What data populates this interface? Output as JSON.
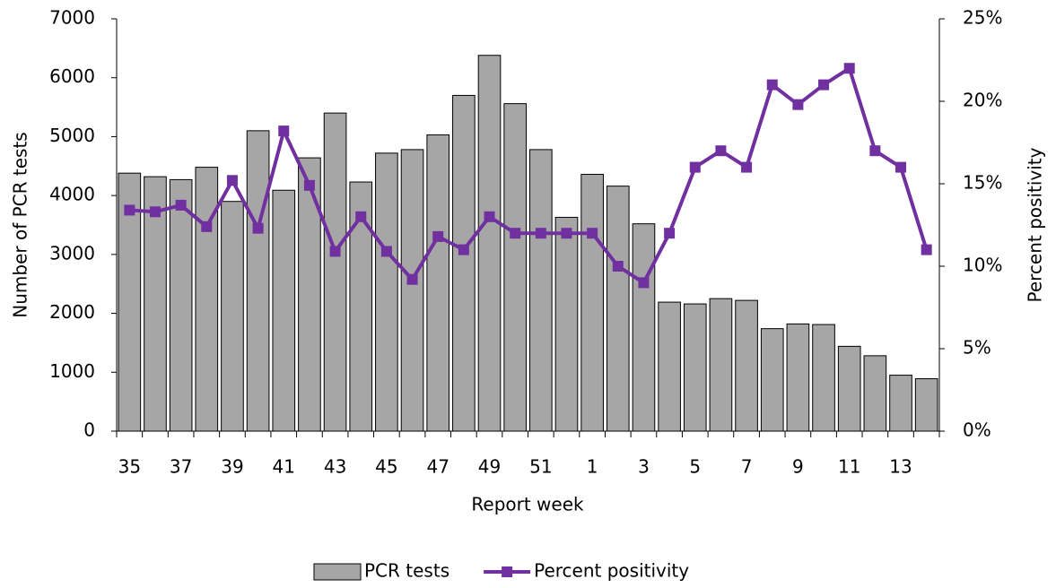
{
  "chart_data": {
    "type": "bar-line",
    "x_label": "Report week",
    "y_label": "Number of PCR tests",
    "y2_label": "Percent positivity",
    "categories": [
      "35",
      null,
      "37",
      null,
      "39",
      null,
      "41",
      null,
      "43",
      null,
      "45",
      null,
      "47",
      null,
      "49",
      null,
      "51",
      null,
      "1",
      null,
      "3",
      null,
      "5",
      null,
      "7",
      null,
      "9",
      null,
      "11",
      null,
      "13",
      null
    ],
    "series": [
      {
        "name": "PCR tests",
        "type": "bar",
        "color": "#a6a6a6",
        "values": [
          4380,
          4320,
          4270,
          4480,
          3900,
          5100,
          4090,
          4640,
          5400,
          4230,
          4720,
          4780,
          5030,
          5700,
          6380,
          5560,
          4780,
          3630,
          4360,
          4160,
          3520,
          2190,
          2160,
          2250,
          2220,
          1740,
          1820,
          1810,
          1440,
          1280,
          950,
          890
        ]
      },
      {
        "name": "Percent positivity",
        "type": "line",
        "axis": "y2",
        "color": "#7030a0",
        "values": [
          13.4,
          13.3,
          13.7,
          12.4,
          15.2,
          12.3,
          18.2,
          14.9,
          10.9,
          13.0,
          10.9,
          9.2,
          11.8,
          11.0,
          13.0,
          12.0,
          12.0,
          12.0,
          12.0,
          10.0,
          9.0,
          12.0,
          16.0,
          17.0,
          16.0,
          21.0,
          19.8,
          21.0,
          22.0,
          17.0,
          16.0,
          11.0
        ]
      }
    ],
    "ylim": [
      0,
      7000
    ],
    "yticks": [
      0,
      1000,
      2000,
      3000,
      4000,
      5000,
      6000,
      7000
    ],
    "y2lim": [
      0,
      25
    ],
    "y2ticks": [
      {
        "value": 0,
        "label": "0%"
      },
      {
        "value": 5,
        "label": "5%"
      },
      {
        "value": 10,
        "label": "10%"
      },
      {
        "value": 15,
        "label": "15%"
      },
      {
        "value": 20,
        "label": "20%"
      },
      {
        "value": 25,
        "label": "25%"
      }
    ],
    "legend": "bottom"
  }
}
